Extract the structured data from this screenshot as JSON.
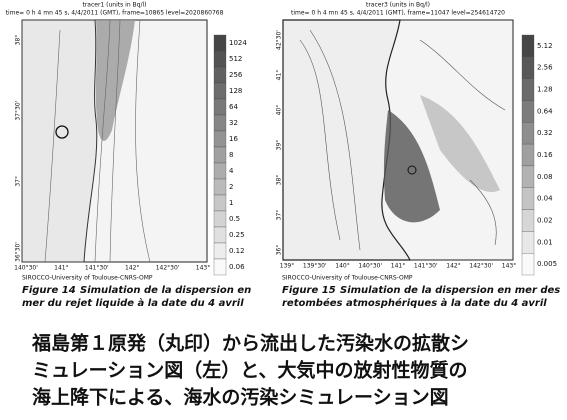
{
  "figures": [
    {
      "header": "tracer1 (units in Bq/l)",
      "info": "time= 0 h 4 mn 45 s,  4/4/2011 (GMT), frame=10865 level=2020860768",
      "colorbar": [
        "1024",
        "512",
        "256",
        "128",
        "64",
        "32",
        "16",
        "8",
        "4",
        "2",
        "1",
        "0.5",
        "0.25",
        "0.12",
        "0.06"
      ],
      "lat_labels": [
        "38°",
        "37°30'",
        "37°",
        "36°30'"
      ],
      "lon_labels": [
        "140°30'",
        "141°",
        "141°30'",
        "142°",
        "142°30'",
        "143°"
      ],
      "credit": "SIROCCO-University of Toulouse-CNRS-OMP",
      "figure_label": "Figure 14",
      "caption_lines": [
        "Simulation de la dispersion en",
        "mer du rejet liquide à la date du 4 avril"
      ]
    },
    {
      "header": "tracer3 (units in Bq/l)",
      "info": "time= 0 h 4 mn 45 s,  4/4/2011 (GMT), frame=11047 level=254614720",
      "colorbar": [
        "5.12",
        "2.56",
        "1.28",
        "0.64",
        "0.32",
        "0.16",
        "0.08",
        "0.04",
        "0.02",
        "0.01",
        "0.005"
      ],
      "lat_labels": [
        "42°30'",
        "41°",
        "40°",
        "39°",
        "38°",
        "37°",
        "36°"
      ],
      "lon_labels": [
        "139°",
        "139°30'",
        "140°",
        "140°30'",
        "141°",
        "141°30'",
        "142°",
        "142°30'",
        "143°"
      ],
      "credit": "SIROCCO-University of Toulouse-CNRS-OMP",
      "figure_label": "Figure 15",
      "caption_lines": [
        "Simulation de la dispersion en mer des",
        "retombées atmosphériques à la date du 4 avril"
      ]
    }
  ],
  "caption_ja": [
    "福島第１原発（丸印）から流出した汚染水の拡散シ",
    "ミュレーション図（左）と、大気中の放射性物質の",
    "海上降下による、海水の汚染シミュレーション図"
  ]
}
